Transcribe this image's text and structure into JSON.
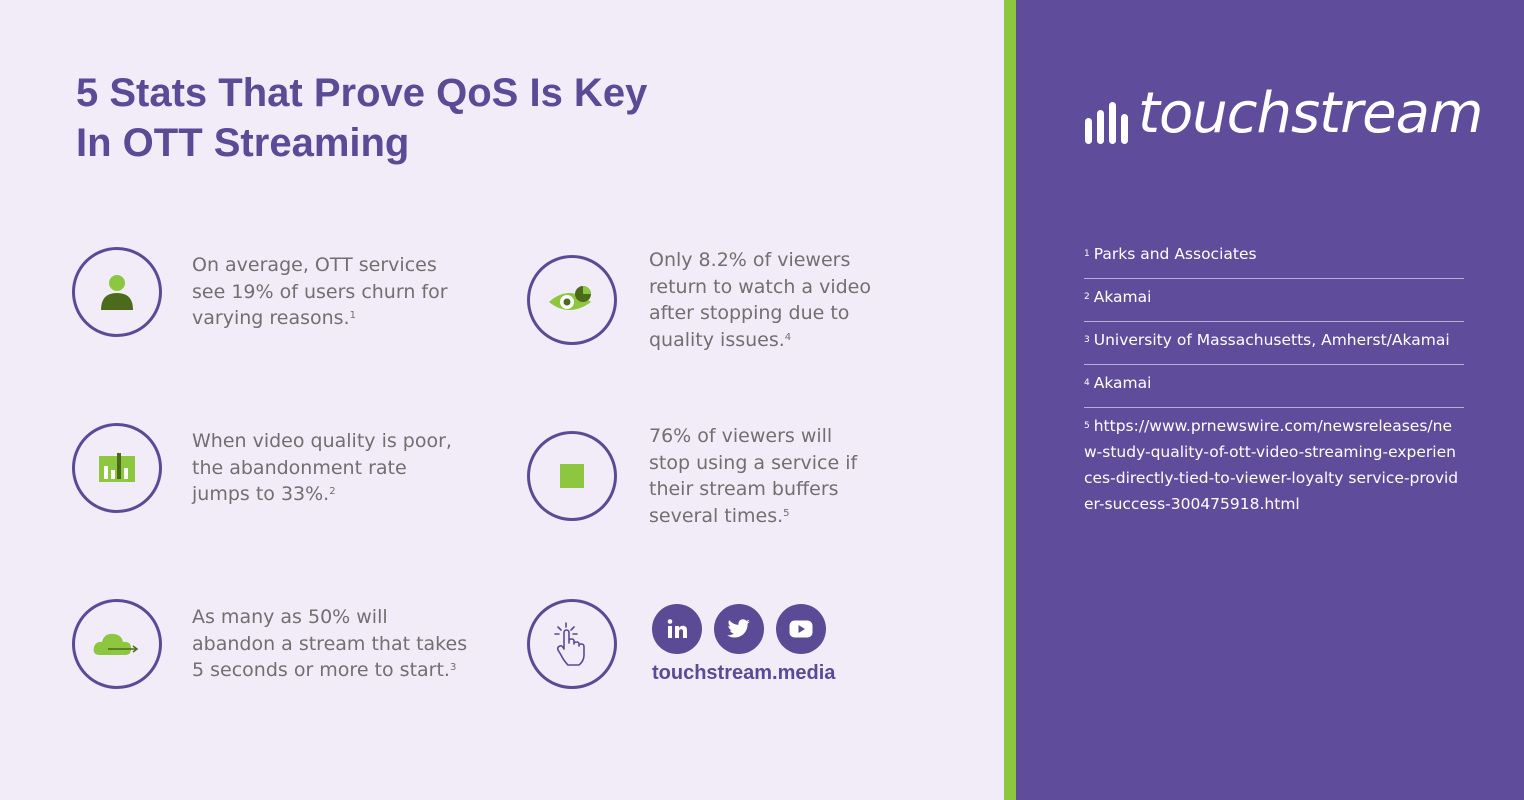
{
  "title_lines": [
    "5 Stats That Prove QoS Is Key",
    "In OTT Streaming"
  ],
  "stats": [
    {
      "lines": [
        "On average, OTT services",
        "see 19% of users churn for",
        "varying reasons."
      ],
      "note": "1",
      "icon": "user-icon"
    },
    {
      "lines": [
        "Only 8.2% of viewers",
        "return to watch a video",
        "after stopping due to",
        "quality issues."
      ],
      "note": "4",
      "icon": "eye-icon"
    },
    {
      "lines": [
        "When video quality is poor,",
        "the abandonment rate",
        "jumps to 33%."
      ],
      "note": "2",
      "icon": "bar-chart-icon"
    },
    {
      "lines": [
        "76% of viewers will",
        "stop using a service if",
        "their stream buffers",
        "several times."
      ],
      "note": "5",
      "icon": "stop-icon"
    },
    {
      "lines": [
        "As many as 50% will",
        "abandon a stream that takes",
        "5 seconds or more to start."
      ],
      "note": "3",
      "icon": "cloud-arrow-icon"
    }
  ],
  "social": {
    "buttons": [
      "linkedin-icon",
      "twitter-icon",
      "youtube-icon"
    ],
    "website": "touchstream.media"
  },
  "brand": {
    "name": "touchstream"
  },
  "references": [
    {
      "num": "1",
      "text": "Parks and Associates"
    },
    {
      "num": "2",
      "text": "Akamai"
    },
    {
      "num": "3",
      "text": "University of Massachusetts, Amherst/Akamai"
    },
    {
      "num": "4",
      "text": "Akamai"
    },
    {
      "num": "5",
      "text": "https://www.prnewswire.com/newsreleases/new-study-quality-of-ott-video-streaming-experiences-directly-tied-to-viewer-loyalty service-provider-success-300475918.html"
    }
  ],
  "colors": {
    "purple": "#5f4d9b",
    "green": "#8dc63f",
    "bg": "#f1ecf7",
    "text": "#707070"
  }
}
